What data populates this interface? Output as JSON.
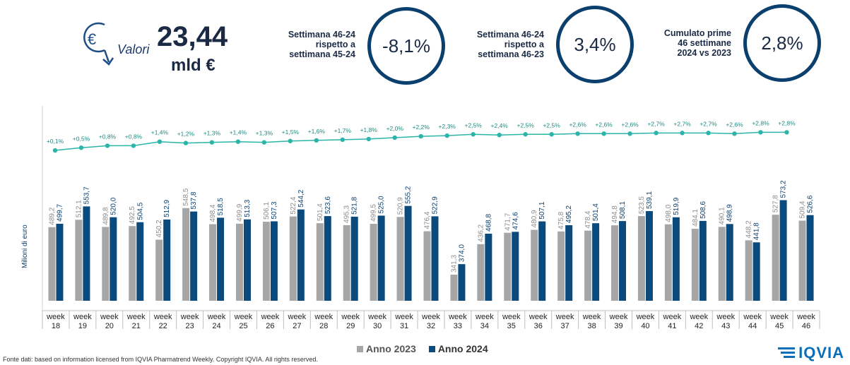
{
  "header": {
    "euro_icon": "euro-coin-down-arrow-icon",
    "valori_label": "Valori",
    "valori_value": "23,44",
    "valori_unit": "mld €",
    "stats": [
      {
        "lines": [
          "Settimana 46-24",
          "rispetto a",
          "settimana 45-24"
        ],
        "value": "-8,1%"
      },
      {
        "lines": [
          "Settimana 46-24",
          "rispetto a",
          "settimana 46-23"
        ],
        "value": "3,4%"
      },
      {
        "lines": [
          "Cumulato prime",
          "46 settimane",
          "2024 vs 2023"
        ],
        "value": "2,8%"
      }
    ]
  },
  "colors": {
    "series_2023": "#a6a6a6",
    "series_2024": "#0b4a7d",
    "trend": "#2ab5a8",
    "accent": "#0b3f6e"
  },
  "chart_data": {
    "type": "bar",
    "ylabel": "Milioni di euro",
    "categories": [
      "week 18",
      "week 19",
      "week 20",
      "week 21",
      "week 22",
      "week 23",
      "week 24",
      "week 25",
      "week 26",
      "week 27",
      "week 28",
      "week 29",
      "week 30",
      "week 31",
      "week 32",
      "week 33",
      "week 34",
      "week 35",
      "week 36",
      "week 37",
      "week 38",
      "week 39",
      "week 40",
      "week 41",
      "week 42",
      "week 43",
      "week 44",
      "week 45",
      "week 46"
    ],
    "series": [
      {
        "name": "Anno 2023",
        "values": [
          489.2,
          512.1,
          489.8,
          492.5,
          450.2,
          548.5,
          498.4,
          499.9,
          506.1,
          522.4,
          501.4,
          495.3,
          499.5,
          520.9,
          476.4,
          341.3,
          436.2,
          471.7,
          480.9,
          475.8,
          478.4,
          494.8,
          523.5,
          498.0,
          484.1,
          490.1,
          448.2,
          527.8,
          509.4
        ],
        "labels": [
          "489,2",
          "512,1",
          "489,8",
          "492,5",
          "450,2",
          "548,5",
          "498,4",
          "499,9",
          "506,1",
          "522,4",
          "501,4",
          "495,3",
          "499,5",
          "520,9",
          "476,4",
          "341,3",
          "436,2",
          "471,7",
          "480,9",
          "475,8",
          "478,4",
          "494,8",
          "523,5",
          "498,0",
          "484,1",
          "490,1",
          "448,2",
          "527,8",
          "509,4"
        ]
      },
      {
        "name": "Anno 2024",
        "values": [
          499.7,
          553.7,
          520.0,
          504.5,
          512.9,
          537.8,
          518.5,
          513.3,
          507.3,
          544.2,
          523.6,
          521.8,
          525.0,
          555.2,
          522.9,
          374.0,
          468.8,
          474.6,
          507.1,
          495.2,
          501.4,
          508.1,
          539.1,
          519.9,
          508.6,
          498.9,
          441.8,
          573.2,
          526.6
        ],
        "labels": [
          "499,7",
          "553,7",
          "520,0",
          "504,5",
          "512,9",
          "537,8",
          "518,5",
          "513,3",
          "507,3",
          "544,2",
          "523,6",
          "521,8",
          "525,0",
          "555,2",
          "522,9",
          "374,0",
          "468,8",
          "474,6",
          "507,1",
          "495,2",
          "501,4",
          "508,1",
          "539,1",
          "519,9",
          "508,6",
          "498,9",
          "441,8",
          "573,2",
          "526,6"
        ]
      }
    ],
    "cumulative_growth": {
      "values": [
        0.1,
        0.5,
        0.8,
        0.8,
        1.4,
        1.2,
        1.3,
        1.4,
        1.3,
        1.5,
        1.6,
        1.7,
        1.8,
        2.0,
        2.2,
        2.3,
        2.5,
        2.4,
        2.5,
        2.5,
        2.6,
        2.6,
        2.6,
        2.7,
        2.7,
        2.7,
        2.6,
        2.8,
        2.8
      ],
      "labels": [
        "+0,1%",
        "+0,5%",
        "+0,8%",
        "+0,8%",
        "+1,4%",
        "+1,2%",
        "+1,3%",
        "+1,4%",
        "+1,3%",
        "+1,5%",
        "+1,6%",
        "+1,7%",
        "+1,8%",
        "+2,0%",
        "+2,2%",
        "+2,3%",
        "+2,5%",
        "+2,4%",
        "+2,5%",
        "+2,5%",
        "+2,6%",
        "+2,6%",
        "+2,6%",
        "+2,7%",
        "+2,7%",
        "+2,7%",
        "+2,6%",
        "+2,8%",
        "+2,8%"
      ]
    },
    "legend_position": "bottom",
    "grid": false
  },
  "legend": {
    "a": "Anno 2023",
    "b": "Anno 2024"
  },
  "footer": {
    "source": "Fonte dati: based on information licensed from IQVIA Pharmatrend Weekly. Copyright IQVIA. All rights reserved."
  },
  "logo": {
    "text": "IQVIA",
    "icon": "iqvia-logo-icon"
  }
}
